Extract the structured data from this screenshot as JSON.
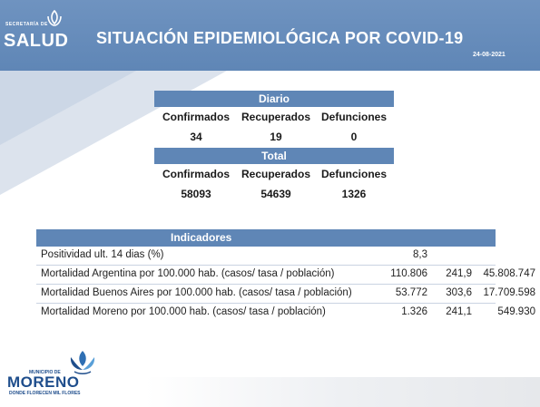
{
  "header": {
    "logo_small": "SECRETARÍA DE",
    "logo_word": "SALUD",
    "title": "SITUACIÓN EPIDEMIOLÓGICA POR COVID-19",
    "date": "24-08-2021"
  },
  "diario": {
    "label": "Diario",
    "columns": [
      "Confirmados",
      "Recuperados",
      "Defunciones"
    ],
    "values": [
      "34",
      "19",
      "0"
    ]
  },
  "total": {
    "label": "Total",
    "columns": [
      "Confirmados",
      "Recuperados",
      "Defunciones"
    ],
    "values": [
      "58093",
      "54639",
      "1326"
    ]
  },
  "indicadores": {
    "label": "Indicadores",
    "rows": [
      {
        "label": "Positividad ult. 14 dias (%)",
        "v1": "8,3",
        "v2": "",
        "v3": ""
      },
      {
        "label": "Mortalidad Argentina por 100.000 hab. (casos/ tasa / población)",
        "v1": "110.806",
        "v2": "241,9",
        "v3": "45.808.747"
      },
      {
        "label": "Mortalidad Buenos Aires por 100.000 hab. (casos/ tasa / población)",
        "v1": "53.772",
        "v2": "303,6",
        "v3": "17.709.598"
      },
      {
        "label": "Mortalidad Moreno por 100.000 hab. (casos/ tasa / población)",
        "v1": "1.326",
        "v2": "241,1",
        "v3": "549.930"
      }
    ]
  },
  "footer": {
    "municipio": "MUNICIPIO DE",
    "name": "MORENO",
    "tagline": "DONDE FLORECEN MIL FLORES"
  },
  "colors": {
    "brand_blue": "#5f86b6",
    "moreno_blue": "#1f4e8c"
  }
}
